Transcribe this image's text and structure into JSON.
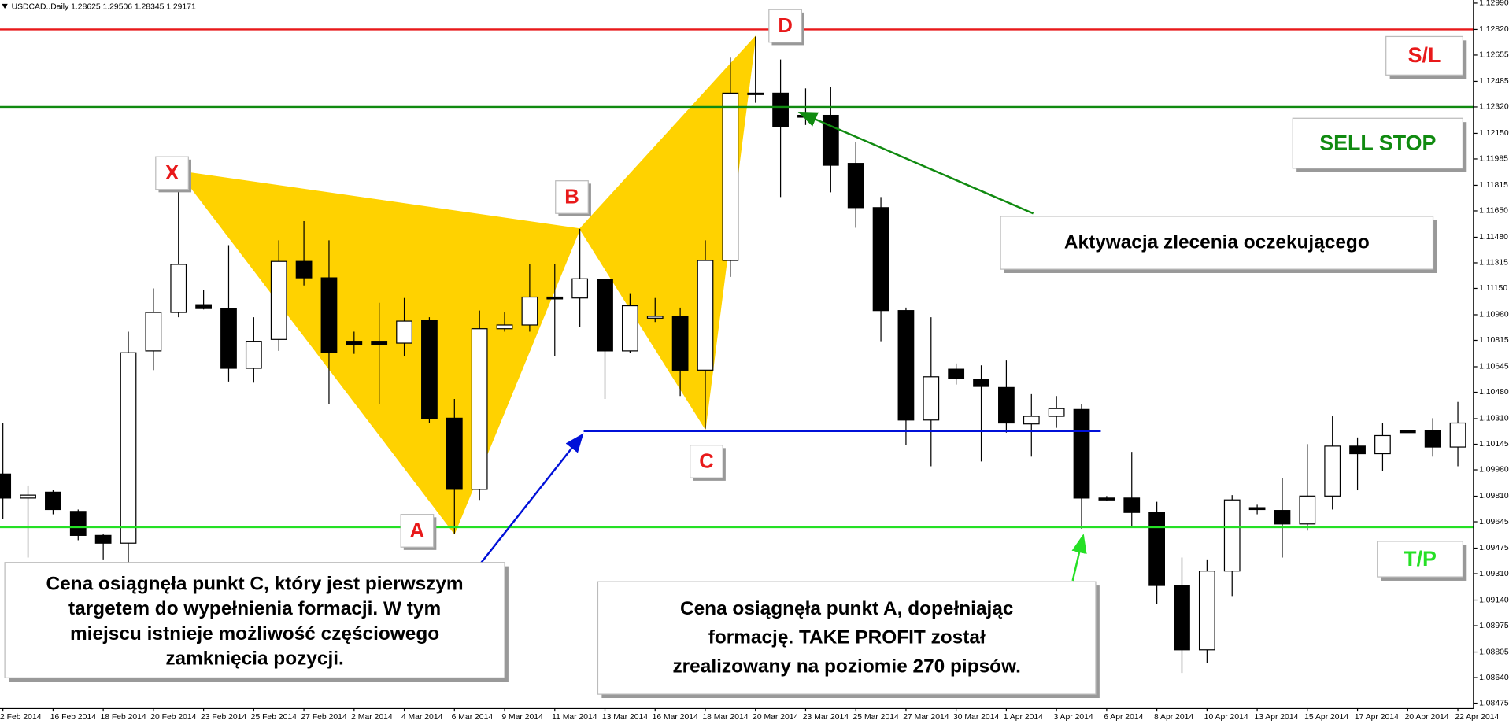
{
  "header": "USDCAD..Daily  1.28625 1.29506 1.28345 1.29171",
  "chart_data": {
    "type": "candlestick",
    "categories": [
      "2 Feb 2014",
      null,
      "16 Feb 2014",
      null,
      "18 Feb 2014",
      null,
      "20 Feb 2014",
      null,
      "23 Feb 2014",
      null,
      "25 Feb 2014",
      null,
      "27 Feb 2014",
      null,
      "2 Mar 2014",
      null,
      "4 Mar 2014",
      null,
      "6 Mar 2014",
      null,
      "9 Mar 2014",
      null,
      "11 Mar 2014",
      null,
      "13 Mar 2014",
      null,
      "16 Mar 2014",
      null,
      "18 Mar 2014",
      null,
      "20 Mar 2014",
      null,
      "23 Mar 2014",
      null,
      "25 Mar 2014",
      null,
      "27 Mar 2014",
      null,
      "30 Mar 2014",
      null,
      "1 Apr 2014",
      null,
      "3 Apr 2014",
      null,
      "6 Apr 2014",
      null,
      "8 Apr 2014",
      null,
      "10 Apr 2014",
      null,
      "13 Apr 2014",
      null,
      "15 Apr 2014",
      null,
      "17 Apr 2014",
      null,
      "20 Apr 2014",
      null,
      "22 Apr 2014"
    ],
    "open": [
      1.09953,
      1.09798,
      1.09836,
      1.09712,
      1.09557,
      1.09507,
      1.10747,
      1.10995,
      1.11045,
      1.1102,
      1.10635,
      1.10821,
      1.11324,
      1.11218,
      1.10809,
      1.10809,
      1.10797,
      1.10945,
      1.10313,
      1.09854,
      1.1089,
      1.10914,
      1.11094,
      1.11088,
      1.11206,
      1.10747,
      1.10958,
      1.1097,
      1.10623,
      1.1133,
      1.12409,
      1.12409,
      1.12266,
      1.12266,
      1.11956,
      1.11671,
      1.11007,
      1.10301,
      1.10629,
      1.10561,
      1.10511,
      1.10276,
      1.10325,
      1.10369,
      1.09798,
      1.09798,
      1.09705,
      1.09234,
      1.08819,
      1.09327,
      1.09736,
      1.09718,
      1.09631,
      1.09811,
      1.10133,
      1.10084,
      1.10232,
      1.10232,
      1.10127
    ],
    "high": [
      1.10282,
      1.09879,
      1.09848,
      1.09724,
      1.09569,
      1.10871,
      1.1115,
      1.11906,
      1.11138,
      1.11429,
      1.10964,
      1.1146,
      1.11584,
      1.1146,
      1.10871,
      1.11057,
      1.11088,
      1.10964,
      1.10437,
      1.11007,
      1.10995,
      1.11305,
      1.11305,
      1.11534,
      1.11212,
      1.11119,
      1.11088,
      1.11026,
      1.1146,
      1.12638,
      1.12774,
      1.12626,
      1.1244,
      1.12452,
      1.12092,
      1.11739,
      1.11026,
      1.10964,
      1.10666,
      1.10654,
      1.10685,
      1.10468,
      1.10456,
      1.10406,
      1.09811,
      1.10096,
      1.09774,
      1.09414,
      1.09402,
      1.09817,
      1.09755,
      1.09929,
      1.10146,
      1.10325,
      1.10189,
      1.10282,
      1.10239,
      1.10313,
      1.10418
    ],
    "low": [
      1.09662,
      1.09414,
      1.09693,
      1.09526,
      1.09402,
      1.09352,
      1.10623,
      1.10964,
      1.11014,
      1.10549,
      1.10542,
      1.10747,
      1.11169,
      1.10406,
      1.10728,
      1.10406,
      1.10716,
      1.10282,
      1.09569,
      1.09786,
      1.10871,
      1.10871,
      1.10716,
      1.10902,
      1.10437,
      1.10735,
      1.10933,
      1.10456,
      1.10245,
      1.11224,
      1.12347,
      1.11739,
      1.12204,
      1.1177,
      1.11541,
      1.10809,
      1.10139,
      1.10003,
      1.1053,
      1.10034,
      1.1022,
      1.10065,
      1.10251,
      1.096,
      1.0978,
      1.09619,
      1.09116,
      1.0867,
      1.08732,
      1.09166,
      1.09693,
      1.09414,
      1.09588,
      1.09724,
      1.09848,
      1.09972,
      1.1022,
      1.10065,
      1.10003
    ],
    "close": [
      1.09798,
      1.09817,
      1.09724,
      1.09557,
      1.09507,
      1.10735,
      1.10995,
      1.11305,
      1.1102,
      1.10635,
      1.10809,
      1.11324,
      1.11218,
      1.10735,
      1.1079,
      1.1079,
      1.10939,
      1.10313,
      1.09854,
      1.1089,
      1.10914,
      1.11094,
      1.11082,
      1.11212,
      1.10747,
      1.11038,
      1.1097,
      1.10623,
      1.1133,
      1.12409,
      1.12402,
      1.12192,
      1.12254,
      1.11944,
      1.11671,
      1.11007,
      1.10301,
      1.1058,
      1.10567,
      1.10518,
      1.10282,
      1.10325,
      1.10375,
      1.09798,
      1.09786,
      1.09705,
      1.09234,
      1.08819,
      1.09327,
      1.09786,
      1.09724,
      1.09631,
      1.09811,
      1.10133,
      1.10084,
      1.10201,
      1.1022,
      1.10127,
      1.10282
    ],
    "up_color": "#ffffff",
    "down_color": "#000000",
    "ylim": [
      1.0844,
      1.1301
    ],
    "yticks": [
      {
        "value": 1.1299,
        "label": "1.12990"
      },
      {
        "value": 1.1282,
        "label": "1.12820"
      },
      1.12655,
      1.12485,
      {
        "value": 1.1232,
        "label": "1.12320"
      },
      {
        "value": 1.1215,
        "label": "1.12150"
      },
      1.11985,
      1.11815,
      {
        "value": 1.1165,
        "label": "1.11650"
      },
      {
        "value": 1.1148,
        "label": "1.11480"
      },
      1.11315,
      {
        "value": 1.1115,
        "label": "1.11150"
      },
      {
        "value": 1.1098,
        "label": "1.10980"
      },
      1.10815,
      1.10645,
      {
        "value": 1.1048,
        "label": "1.10480"
      },
      {
        "value": 1.1031,
        "label": "1.10310"
      },
      1.10145,
      {
        "value": 1.0998,
        "label": "1.09980"
      },
      {
        "value": 1.0981,
        "label": "1.09810"
      },
      1.09645,
      1.09475,
      {
        "value": 1.0931,
        "label": "1.09310"
      },
      {
        "value": 1.0914,
        "label": "1.09140"
      },
      1.08975,
      1.08805,
      {
        "value": 1.0864,
        "label": "1.08640"
      },
      1.08475
    ],
    "grid": false,
    "levels": [
      {
        "label": "S/L",
        "value": 1.1282,
        "color": "#e8191a"
      },
      {
        "label": "SELL STOP",
        "value": 1.1232,
        "color": "#108a10"
      },
      {
        "label": "T/P",
        "value": 1.0961,
        "color": "#25e025"
      },
      {
        "value": 1.1023,
        "color": "#0010d8"
      }
    ],
    "pattern": {
      "labels": [
        "X",
        "A",
        "B",
        "C",
        "D"
      ],
      "color": "#ffd200"
    },
    "annotations": [
      {
        "lines": [
          "Aktywacja zlecenia oczekującego"
        ]
      },
      {
        "lines": [
          "Cena osiągnęła punkt C, który jest pierwszym",
          "targetem do wypełnienia formacji. W tym",
          "miejscu istnieje możliwość częściowego",
          "zamknięcia pozycji."
        ]
      },
      {
        "lines": [
          "Cena osiągnęła punkt A, dopełniając",
          "formację. TAKE PROFIT został",
          "zrealizowany na poziomie 270 pipsów."
        ]
      }
    ]
  }
}
